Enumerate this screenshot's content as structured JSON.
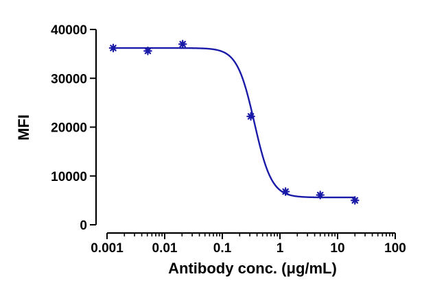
{
  "chart_data": {
    "type": "scatter",
    "title": "",
    "xlabel": "Antibody conc. (μg/mL)",
    "ylabel": "MFI",
    "x_scale": "log",
    "xlim": [
      0.001,
      100
    ],
    "ylim": [
      0,
      40000
    ],
    "x_ticks": [
      0.001,
      0.01,
      0.1,
      1,
      10,
      100
    ],
    "x_tick_labels": [
      "0.001",
      "0.01",
      "0.1",
      "1",
      "10",
      "100"
    ],
    "y_ticks": [
      0,
      10000,
      20000,
      30000,
      40000
    ],
    "y_tick_labels": [
      "0",
      "10000",
      "20000",
      "30000",
      "40000"
    ],
    "grid": false,
    "series": [
      {
        "marker": "star",
        "color": "#1a1aa8",
        "points": [
          {
            "x": 0.00128,
            "y": 36200
          },
          {
            "x": 0.0051,
            "y": 35600
          },
          {
            "x": 0.0205,
            "y": 37000
          },
          {
            "x": 0.3125,
            "y": 22200
          },
          {
            "x": 1.25,
            "y": 6800
          },
          {
            "x": 5,
            "y": 6100
          },
          {
            "x": 20,
            "y": 5000
          }
        ]
      }
    ],
    "fit_curve": {
      "type": "4PL",
      "color": "#1a1aa8",
      "top": 36200,
      "bottom": 5600,
      "ec50": 0.36,
      "hill": 2.9,
      "x_range": [
        0.00128,
        20
      ]
    }
  }
}
